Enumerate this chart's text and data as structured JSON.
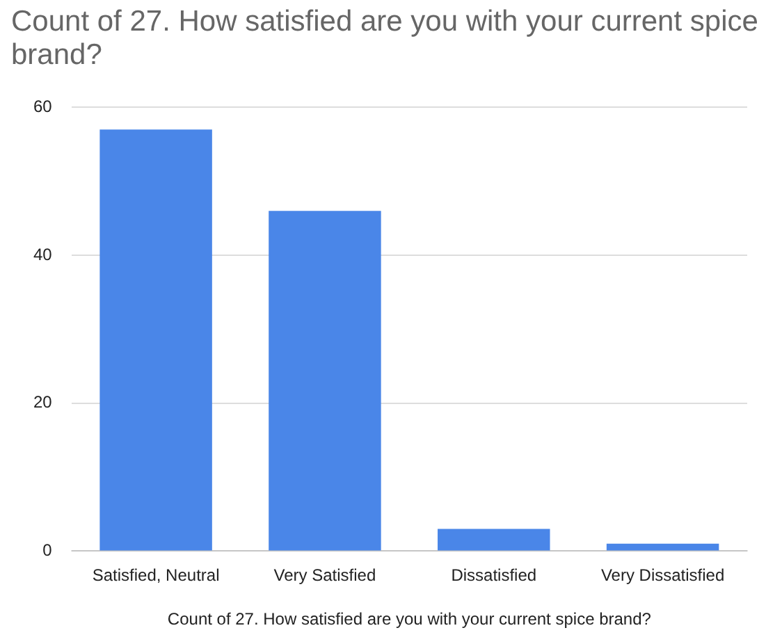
{
  "chart_data": {
    "type": "bar",
    "title": "Count of 27. How satisfied are you with your current spice brand?",
    "xlabel": "Count of 27. How satisfied are you with your current spice brand?",
    "categories": [
      "Satisfied, Neutral",
      "Very Satisfied",
      "Dissatisfied",
      "Very Dissatisfied"
    ],
    "values": [
      57,
      46,
      3,
      1
    ],
    "color": "#4a86e8",
    "ylim": [
      0,
      60
    ],
    "yticks": [
      0,
      20,
      40,
      60
    ],
    "grid": "y"
  }
}
